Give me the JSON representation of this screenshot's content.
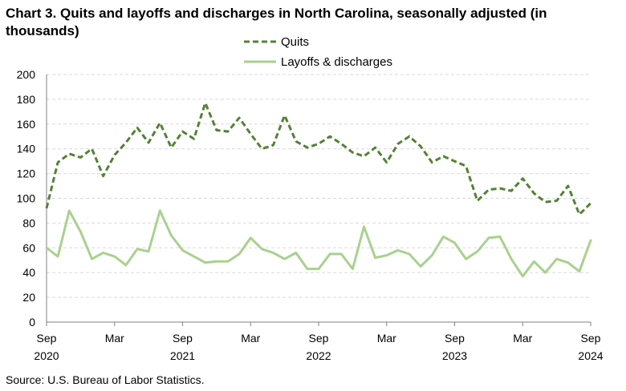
{
  "chart_data": {
    "type": "line",
    "title": "Chart 3. Quits and layoffs and discharges in North Carolina, seasonally adjusted (in thousands)",
    "source": "Source: U.S. Bureau of Labor Statistics.",
    "ylim": [
      0,
      200
    ],
    "y_ticks": [
      "0",
      "20",
      "40",
      "60",
      "80",
      "100",
      "120",
      "140",
      "160",
      "180",
      "200"
    ],
    "grid": true,
    "legend_position": "top-center",
    "x": [
      "Sep 2020",
      "Oct 2020",
      "Nov 2020",
      "Dec 2020",
      "Jan 2021",
      "Feb 2021",
      "Mar 2021",
      "Apr 2021",
      "May 2021",
      "Jun 2021",
      "Jul 2021",
      "Aug 2021",
      "Sep 2021",
      "Oct 2021",
      "Nov 2021",
      "Dec 2021",
      "Jan 2022",
      "Feb 2022",
      "Mar 2022",
      "Apr 2022",
      "May 2022",
      "Jun 2022",
      "Jul 2022",
      "Aug 2022",
      "Sep 2022",
      "Oct 2022",
      "Nov 2022",
      "Dec 2022",
      "Jan 2023",
      "Feb 2023",
      "Mar 2023",
      "Apr 2023",
      "May 2023",
      "Jun 2023",
      "Jul 2023",
      "Aug 2023",
      "Sep 2023",
      "Oct 2023",
      "Nov 2023",
      "Dec 2023",
      "Jan 2024",
      "Feb 2024",
      "Mar 2024",
      "Apr 2024",
      "May 2024",
      "Jun 2024",
      "Jul 2024",
      "Aug 2024",
      "Sep 2024"
    ],
    "x_tick_labels": [
      {
        "index": 0,
        "month": "Sep",
        "year": "2020"
      },
      {
        "index": 6,
        "month": "Mar",
        "year": ""
      },
      {
        "index": 12,
        "month": "Sep",
        "year": "2021"
      },
      {
        "index": 18,
        "month": "Mar",
        "year": ""
      },
      {
        "index": 24,
        "month": "Sep",
        "year": "2022"
      },
      {
        "index": 30,
        "month": "Mar",
        "year": ""
      },
      {
        "index": 36,
        "month": "Sep",
        "year": "2023"
      },
      {
        "index": 42,
        "month": "Mar",
        "year": ""
      },
      {
        "index": 48,
        "month": "Sep",
        "year": "2024"
      }
    ],
    "series": [
      {
        "name": "Quits",
        "style": "dashed",
        "color": "#548235",
        "values": [
          92,
          129,
          136,
          133,
          140,
          118,
          135,
          145,
          157,
          145,
          161,
          141,
          154,
          148,
          177,
          155,
          154,
          165,
          152,
          140,
          143,
          167,
          146,
          141,
          144,
          150,
          144,
          137,
          134,
          141,
          129,
          144,
          150,
          142,
          129,
          134,
          130,
          126,
          98,
          107,
          108,
          106,
          116,
          104,
          97,
          98,
          110,
          87,
          96
        ]
      },
      {
        "name": "Layoffs & discharges",
        "style": "solid",
        "color": "#a9d18e",
        "values": [
          60,
          53,
          90,
          73,
          51,
          56,
          53,
          46,
          59,
          57,
          90,
          70,
          58,
          53,
          48,
          49,
          49,
          55,
          68,
          59,
          56,
          51,
          56,
          43,
          43,
          55,
          55,
          43,
          77,
          52,
          54,
          58,
          55,
          45,
          54,
          69,
          64,
          51,
          57,
          68,
          69,
          51,
          37,
          49,
          40,
          51,
          48,
          41,
          66
        ]
      }
    ]
  }
}
